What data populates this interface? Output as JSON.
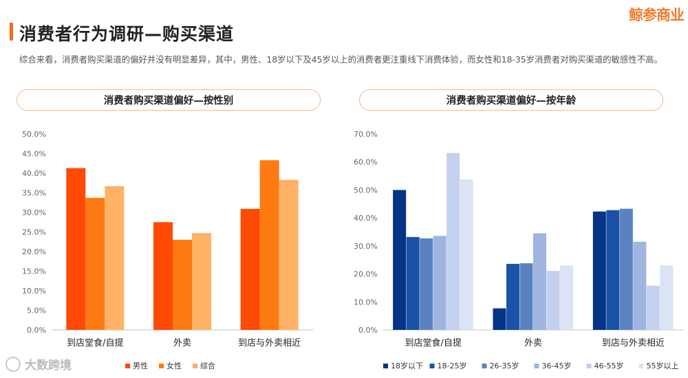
{
  "header": {
    "title": "消费者行为调研—购买渠道",
    "summary": "综合来看，消费者购买渠道的偏好并没有明显差异，其中，男性、18岁以下及45岁以上的消费者更注重线下消费体验，而女性和18-35岁消费者对购买渠道的敏感性不高。",
    "brand": "鲸参商业",
    "accent_color": "#f26b1d"
  },
  "footer": {
    "watermark": "大数跨境"
  },
  "chart_data": [
    {
      "type": "bar",
      "title": "消费者购买渠道偏好—按性别",
      "categories": [
        "到店堂食/自提",
        "外卖",
        "到店与外卖相近"
      ],
      "ylim": [
        0,
        50
      ],
      "yticks": [
        "0.0%",
        "5.0%",
        "10.0%",
        "15.0%",
        "20.0%",
        "25.0%",
        "30.0%",
        "35.0%",
        "40.0%",
        "45.0%",
        "50.0%"
      ],
      "series": [
        {
          "name": "男性",
          "color": "#fe4a04",
          "values": [
            41.3,
            27.5,
            30.9
          ]
        },
        {
          "name": "女性",
          "color": "#fe7a12",
          "values": [
            33.7,
            23.0,
            43.3
          ]
        },
        {
          "name": "综合",
          "color": "#feb266",
          "values": [
            36.7,
            24.7,
            38.3
          ]
        }
      ],
      "legend": "bottom"
    },
    {
      "type": "bar",
      "title": "消费者购买渠道偏好—按年龄",
      "categories": [
        "到店堂食/自提",
        "外卖",
        "到店与外卖相近"
      ],
      "ylim": [
        0,
        70
      ],
      "yticks": [
        "0.0%",
        "10.0%",
        "20.0%",
        "30.0%",
        "40.0%",
        "50.0%",
        "60.0%",
        "70.0%"
      ],
      "series": [
        {
          "name": "18岁以下",
          "color": "#053386",
          "values": [
            50.0,
            7.7,
            42.3
          ]
        },
        {
          "name": "18-25岁",
          "color": "#1a52a8",
          "values": [
            33.2,
            23.6,
            42.8
          ]
        },
        {
          "name": "26-35岁",
          "color": "#5b82c0",
          "values": [
            32.7,
            23.8,
            43.3
          ]
        },
        {
          "name": "36-45岁",
          "color": "#9fb5e0",
          "values": [
            33.6,
            34.5,
            31.5
          ]
        },
        {
          "name": "46-55岁",
          "color": "#c3d0ee",
          "values": [
            63.2,
            21.1,
            15.8
          ]
        },
        {
          "name": "55岁以上",
          "color": "#dbe3f4",
          "values": [
            53.8,
            23.1,
            23.1
          ]
        }
      ],
      "legend": "bottom"
    }
  ]
}
